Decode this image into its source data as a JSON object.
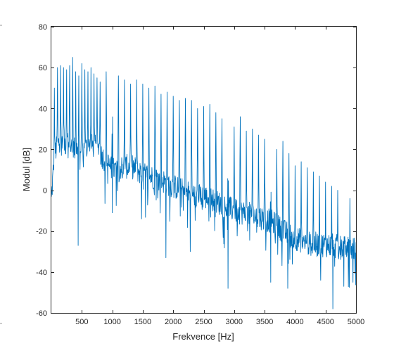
{
  "chart_data": {
    "type": "line",
    "title": "",
    "xlabel": "Frekvence [Hz]",
    "ylabel": "Modul [dB]",
    "xlim": [
      0,
      5000
    ],
    "ylim": [
      -60,
      80
    ],
    "xticks": [
      500,
      1000,
      1500,
      2000,
      2500,
      3000,
      3500,
      4000,
      4500,
      5000
    ],
    "yticks": [
      -60,
      -40,
      -20,
      0,
      20,
      40,
      60,
      80
    ],
    "grid": false,
    "legend": "none",
    "series": [
      {
        "color": "#0072bd",
        "harmonic_spacing_hz": 100,
        "harmonic_peaks": [
          {
            "x": 50,
            "y": 50
          },
          {
            "x": 100,
            "y": 60
          },
          {
            "x": 150,
            "y": 61
          },
          {
            "x": 200,
            "y": 60
          },
          {
            "x": 250,
            "y": 59
          },
          {
            "x": 300,
            "y": 61
          },
          {
            "x": 350,
            "y": 65
          },
          {
            "x": 400,
            "y": 58
          },
          {
            "x": 450,
            "y": 56
          },
          {
            "x": 500,
            "y": 62
          },
          {
            "x": 550,
            "y": 59
          },
          {
            "x": 600,
            "y": 58
          },
          {
            "x": 650,
            "y": 60
          },
          {
            "x": 700,
            "y": 57
          },
          {
            "x": 750,
            "y": 55
          },
          {
            "x": 800,
            "y": 53
          },
          {
            "x": 900,
            "y": 58
          },
          {
            "x": 1000,
            "y": 56
          },
          {
            "x": 1100,
            "y": 56
          },
          {
            "x": 1200,
            "y": 54
          },
          {
            "x": 1300,
            "y": 52
          },
          {
            "x": 1400,
            "y": 54
          },
          {
            "x": 1500,
            "y": 52
          },
          {
            "x": 1600,
            "y": 50
          },
          {
            "x": 1700,
            "y": 51
          },
          {
            "x": 1800,
            "y": 47
          },
          {
            "x": 1900,
            "y": 48
          },
          {
            "x": 2000,
            "y": 46
          },
          {
            "x": 2100,
            "y": 44
          },
          {
            "x": 2200,
            "y": 45
          },
          {
            "x": 2300,
            "y": 44
          },
          {
            "x": 2400,
            "y": 40
          },
          {
            "x": 2500,
            "y": 41
          },
          {
            "x": 2600,
            "y": 42
          },
          {
            "x": 2700,
            "y": 38
          },
          {
            "x": 2800,
            "y": 35
          },
          {
            "x": 2900,
            "y": 34
          },
          {
            "x": 3000,
            "y": 31
          },
          {
            "x": 3100,
            "y": 36
          },
          {
            "x": 3200,
            "y": 29
          },
          {
            "x": 3300,
            "y": 30
          },
          {
            "x": 3400,
            "y": 27
          },
          {
            "x": 3500,
            "y": 25
          },
          {
            "x": 3600,
            "y": 22
          },
          {
            "x": 3700,
            "y": 20
          },
          {
            "x": 3800,
            "y": 24
          },
          {
            "x": 3900,
            "y": 18
          },
          {
            "x": 4000,
            "y": 12
          },
          {
            "x": 4100,
            "y": 14
          },
          {
            "x": 4200,
            "y": 11
          },
          {
            "x": 4300,
            "y": 9
          },
          {
            "x": 4400,
            "y": 7
          },
          {
            "x": 4500,
            "y": 4
          },
          {
            "x": 4600,
            "y": 2
          },
          {
            "x": 4700,
            "y": 0
          },
          {
            "x": 4800,
            "y": -2
          },
          {
            "x": 4900,
            "y": -4
          },
          {
            "x": 4950,
            "y": -6
          }
        ],
        "floor_profile": [
          {
            "x": 0,
            "y": -5
          },
          {
            "x": 50,
            "y": 18
          },
          {
            "x": 150,
            "y": 25
          },
          {
            "x": 300,
            "y": 21
          },
          {
            "x": 500,
            "y": 20
          },
          {
            "x": 700,
            "y": 22
          },
          {
            "x": 800,
            "y": 18
          },
          {
            "x": 1000,
            "y": 10
          },
          {
            "x": 1300,
            "y": 12
          },
          {
            "x": 1500,
            "y": 8
          },
          {
            "x": 1800,
            "y": 5
          },
          {
            "x": 2000,
            "y": 2
          },
          {
            "x": 2300,
            "y": -2
          },
          {
            "x": 2600,
            "y": -4
          },
          {
            "x": 3000,
            "y": -10
          },
          {
            "x": 3300,
            "y": -12
          },
          {
            "x": 3600,
            "y": -15
          },
          {
            "x": 3900,
            "y": -22
          },
          {
            "x": 4200,
            "y": -26
          },
          {
            "x": 4600,
            "y": -27
          },
          {
            "x": 5000,
            "y": -29
          }
        ],
        "deep_dips": [
          {
            "x": 440,
            "y": -27
          },
          {
            "x": 1000,
            "y": -11
          },
          {
            "x": 1480,
            "y": -14
          },
          {
            "x": 1880,
            "y": -33
          },
          {
            "x": 2280,
            "y": -30
          },
          {
            "x": 2900,
            "y": -48
          },
          {
            "x": 3600,
            "y": -45
          },
          {
            "x": 3880,
            "y": -48
          },
          {
            "x": 4420,
            "y": -44
          },
          {
            "x": 4620,
            "y": -58
          },
          {
            "x": 4800,
            "y": -47
          },
          {
            "x": 4950,
            "y": -45
          }
        ]
      }
    ]
  }
}
